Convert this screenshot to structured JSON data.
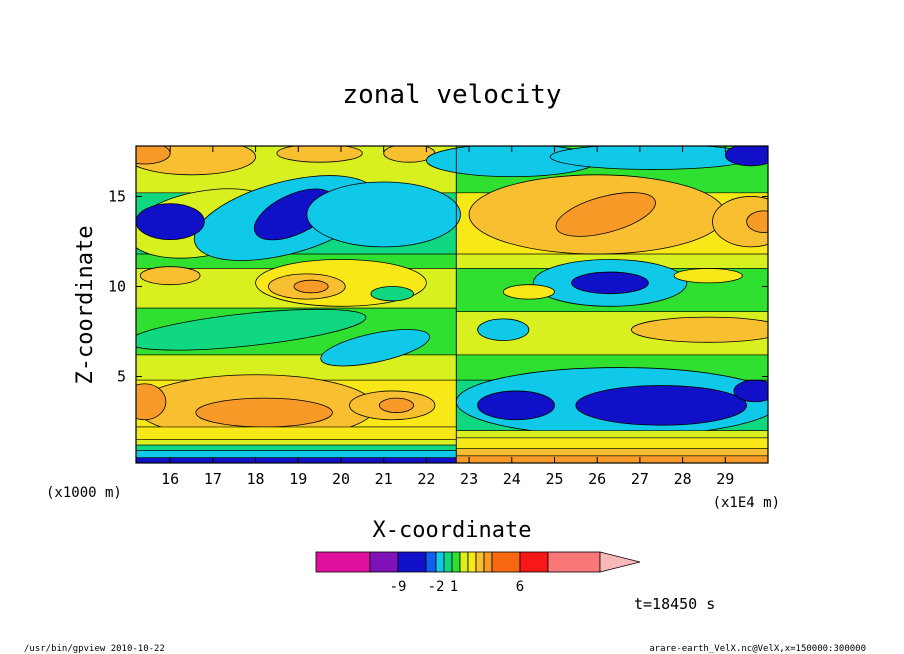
{
  "chart_data": {
    "type": "heatmap",
    "title": "zonal velocity",
    "xlabel": "X-coordinate",
    "ylabel": "Z-coordinate",
    "x_unit_left": "(x1000 m)",
    "x_unit_right": "(x1E4 m)",
    "xlim": [
      15.2,
      30.0
    ],
    "ylim": [
      0.2,
      17.8
    ],
    "x_ticks": [
      16,
      17,
      18,
      19,
      20,
      21,
      22,
      23,
      24,
      25,
      26,
      27,
      28,
      29
    ],
    "x_tick_labels": [
      "16",
      "17",
      "18",
      "19",
      "20",
      "21",
      "22",
      "23",
      "24",
      "25",
      "26",
      "27",
      "28",
      "29"
    ],
    "y_ticks": [
      5,
      10,
      15
    ],
    "y_tick_labels": [
      "5",
      "10",
      "15"
    ],
    "time_label": "t=18450 s",
    "colorbar": {
      "colors": [
        "#e0109c",
        "#8010b8",
        "#1010c8",
        "#1060f0",
        "#10c8e8",
        "#10d880",
        "#30e030",
        "#d8f020",
        "#f8e818",
        "#f8c030",
        "#f89a28",
        "#f86810",
        "#f81818",
        "#f87878",
        "#f8b8b8"
      ],
      "labels": [
        "-9",
        "-2",
        "1",
        "6"
      ]
    },
    "regions": [
      {
        "xc": 16.8,
        "zc": 13.5,
        "rx": 1.8,
        "rz": 1.8,
        "level": 7,
        "shape": "ellipse",
        "angle": -10
      },
      {
        "xc": 18.7,
        "zc": 13.8,
        "rx": 2.2,
        "rz": 2.0,
        "level": 4,
        "shape": "ellipse",
        "angle": -15
      },
      {
        "xc": 18.9,
        "zc": 14.0,
        "rx": 1.0,
        "rz": 1.1,
        "level": 2,
        "shape": "ellipse",
        "angle": -25
      },
      {
        "xc": 16.0,
        "zc": 13.6,
        "rx": 0.8,
        "rz": 1.0,
        "level": 2,
        "shape": "ellipse",
        "angle": 0
      },
      {
        "xc": 21.0,
        "zc": 14.0,
        "rx": 1.8,
        "rz": 1.8,
        "level": 4,
        "shape": "ellipse",
        "angle": 0
      },
      {
        "xc": 16.5,
        "zc": 17.2,
        "rx": 1.5,
        "rz": 1.0,
        "level": 9,
        "shape": "ellipse",
        "angle": 0
      },
      {
        "xc": 15.4,
        "zc": 17.4,
        "rx": 0.6,
        "rz": 0.6,
        "level": 10,
        "shape": "ellipse",
        "angle": 0
      },
      {
        "xc": 19.5,
        "zc": 17.4,
        "rx": 1.0,
        "rz": 0.5,
        "level": 9,
        "shape": "ellipse",
        "angle": 0
      },
      {
        "xc": 21.6,
        "zc": 17.4,
        "rx": 0.6,
        "rz": 0.5,
        "level": 9,
        "shape": "ellipse",
        "angle": 0
      },
      {
        "xc": 20.0,
        "zc": 10.2,
        "rx": 2.0,
        "rz": 1.3,
        "level": 8,
        "shape": "ellipse",
        "angle": 0
      },
      {
        "xc": 19.2,
        "zc": 10.0,
        "rx": 0.9,
        "rz": 0.7,
        "level": 9,
        "shape": "ellipse",
        "angle": 0
      },
      {
        "xc": 19.3,
        "zc": 10.0,
        "rx": 0.4,
        "rz": 0.35,
        "level": 10,
        "shape": "ellipse",
        "angle": 0
      },
      {
        "xc": 16.0,
        "zc": 10.6,
        "rx": 0.7,
        "rz": 0.5,
        "level": 9,
        "shape": "ellipse",
        "angle": 0
      },
      {
        "xc": 21.2,
        "zc": 9.6,
        "rx": 0.5,
        "rz": 0.4,
        "level": 5,
        "shape": "ellipse",
        "angle": 0
      },
      {
        "xc": 17.8,
        "zc": 7.6,
        "rx": 2.8,
        "rz": 0.9,
        "level": 5,
        "shape": "ellipse",
        "angle": -6
      },
      {
        "xc": 20.8,
        "zc": 6.6,
        "rx": 1.3,
        "rz": 0.8,
        "level": 4,
        "shape": "ellipse",
        "angle": -12
      },
      {
        "xc": 18.0,
        "zc": 3.3,
        "rx": 2.8,
        "rz": 1.8,
        "level": 9,
        "shape": "ellipse",
        "angle": 0
      },
      {
        "xc": 18.2,
        "zc": 3.0,
        "rx": 1.6,
        "rz": 0.8,
        "level": 10,
        "shape": "ellipse",
        "angle": 0
      },
      {
        "xc": 21.2,
        "zc": 3.4,
        "rx": 1.0,
        "rz": 0.8,
        "level": 9,
        "shape": "ellipse",
        "angle": 0
      },
      {
        "xc": 21.3,
        "zc": 3.4,
        "rx": 0.4,
        "rz": 0.4,
        "level": 10,
        "shape": "ellipse",
        "angle": 0
      },
      {
        "xc": 15.4,
        "zc": 3.6,
        "rx": 0.5,
        "rz": 1.0,
        "level": 10,
        "shape": "ellipse",
        "angle": 0
      },
      {
        "xc": 26.0,
        "zc": 14.0,
        "rx": 3.0,
        "rz": 2.2,
        "level": 9,
        "shape": "ellipse",
        "angle": 0
      },
      {
        "xc": 26.2,
        "zc": 14.0,
        "rx": 1.2,
        "rz": 1.0,
        "level": 10,
        "shape": "ellipse",
        "angle": -15
      },
      {
        "xc": 29.6,
        "zc": 13.6,
        "rx": 0.9,
        "rz": 1.4,
        "level": 9,
        "shape": "ellipse",
        "angle": 0
      },
      {
        "xc": 29.9,
        "zc": 13.6,
        "rx": 0.4,
        "rz": 0.6,
        "level": 10,
        "shape": "ellipse",
        "angle": 0
      },
      {
        "xc": 24.0,
        "zc": 17.0,
        "rx": 2.0,
        "rz": 0.9,
        "level": 4,
        "shape": "ellipse",
        "angle": 0
      },
      {
        "xc": 27.3,
        "zc": 17.2,
        "rx": 2.4,
        "rz": 0.7,
        "level": 4,
        "shape": "ellipse",
        "angle": 0
      },
      {
        "xc": 29.6,
        "zc": 17.3,
        "rx": 0.6,
        "rz": 0.6,
        "level": 2,
        "shape": "ellipse",
        "angle": 0
      },
      {
        "xc": 26.3,
        "zc": 10.2,
        "rx": 1.8,
        "rz": 1.3,
        "level": 4,
        "shape": "ellipse",
        "angle": 0
      },
      {
        "xc": 26.3,
        "zc": 10.2,
        "rx": 0.9,
        "rz": 0.6,
        "level": 2,
        "shape": "ellipse",
        "angle": 0
      },
      {
        "xc": 24.4,
        "zc": 9.7,
        "rx": 0.6,
        "rz": 0.4,
        "level": 8,
        "shape": "ellipse",
        "angle": 0
      },
      {
        "xc": 23.8,
        "zc": 7.6,
        "rx": 0.6,
        "rz": 0.6,
        "level": 4,
        "shape": "ellipse",
        "angle": 0
      },
      {
        "xc": 28.6,
        "zc": 10.6,
        "rx": 0.8,
        "rz": 0.4,
        "level": 8,
        "shape": "ellipse",
        "angle": 0
      },
      {
        "xc": 28.6,
        "zc": 7.6,
        "rx": 1.8,
        "rz": 0.7,
        "level": 9,
        "shape": "ellipse",
        "angle": 0
      },
      {
        "xc": 26.5,
        "zc": 3.6,
        "rx": 3.8,
        "rz": 1.9,
        "level": 4,
        "shape": "ellipse",
        "angle": 0
      },
      {
        "xc": 27.5,
        "zc": 3.4,
        "rx": 2.0,
        "rz": 1.1,
        "level": 2,
        "shape": "ellipse",
        "angle": 0
      },
      {
        "xc": 24.1,
        "zc": 3.4,
        "rx": 0.9,
        "rz": 0.8,
        "level": 2,
        "shape": "ellipse",
        "angle": 0
      },
      {
        "xc": 29.7,
        "zc": 4.2,
        "rx": 0.5,
        "rz": 0.6,
        "level": 2,
        "shape": "ellipse",
        "angle": 0
      }
    ],
    "bands": [
      {
        "side": "left",
        "z0": 0.2,
        "z1": 0.5,
        "level": 2
      },
      {
        "side": "left",
        "z0": 0.5,
        "z1": 0.9,
        "level": 4
      },
      {
        "side": "left",
        "z0": 0.9,
        "z1": 1.2,
        "level": 5
      },
      {
        "side": "left",
        "z0": 1.2,
        "z1": 1.5,
        "level": 7
      },
      {
        "side": "left",
        "z0": 1.5,
        "z1": 2.2,
        "level": 8
      },
      {
        "side": "right",
        "z0": 0.2,
        "z1": 0.6,
        "level": 10
      },
      {
        "side": "right",
        "z0": 0.6,
        "z1": 1.0,
        "level": 9
      },
      {
        "side": "right",
        "z0": 1.0,
        "z1": 1.6,
        "level": 8
      },
      {
        "side": "right",
        "z0": 1.6,
        "z1": 2.0,
        "level": 7
      }
    ],
    "background_left": [
      {
        "z0": 15.2,
        "z1": 17.8,
        "level": 7
      },
      {
        "z0": 11.8,
        "z1": 15.2,
        "level": 5
      },
      {
        "z0": 11.0,
        "z1": 11.8,
        "level": 6
      },
      {
        "z0": 8.8,
        "z1": 11.0,
        "level": 7
      },
      {
        "z0": 6.2,
        "z1": 8.8,
        "level": 6
      },
      {
        "z0": 4.8,
        "z1": 6.2,
        "level": 7
      },
      {
        "z0": 2.2,
        "z1": 4.8,
        "level": 8
      }
    ],
    "background_right": [
      {
        "z0": 15.2,
        "z1": 17.8,
        "level": 6
      },
      {
        "z0": 11.8,
        "z1": 15.2,
        "level": 8
      },
      {
        "z0": 11.0,
        "z1": 11.8,
        "level": 7
      },
      {
        "z0": 8.6,
        "z1": 11.0,
        "level": 6
      },
      {
        "z0": 6.2,
        "z1": 8.6,
        "level": 7
      },
      {
        "z0": 4.8,
        "z1": 6.2,
        "level": 6
      },
      {
        "z0": 2.0,
        "z1": 4.8,
        "level": 5
      }
    ]
  },
  "footer": {
    "left": "/usr/bin/gpview  2010-10-22",
    "right": "arare-earth_VelX.nc@VelX,x=150000:300000"
  }
}
